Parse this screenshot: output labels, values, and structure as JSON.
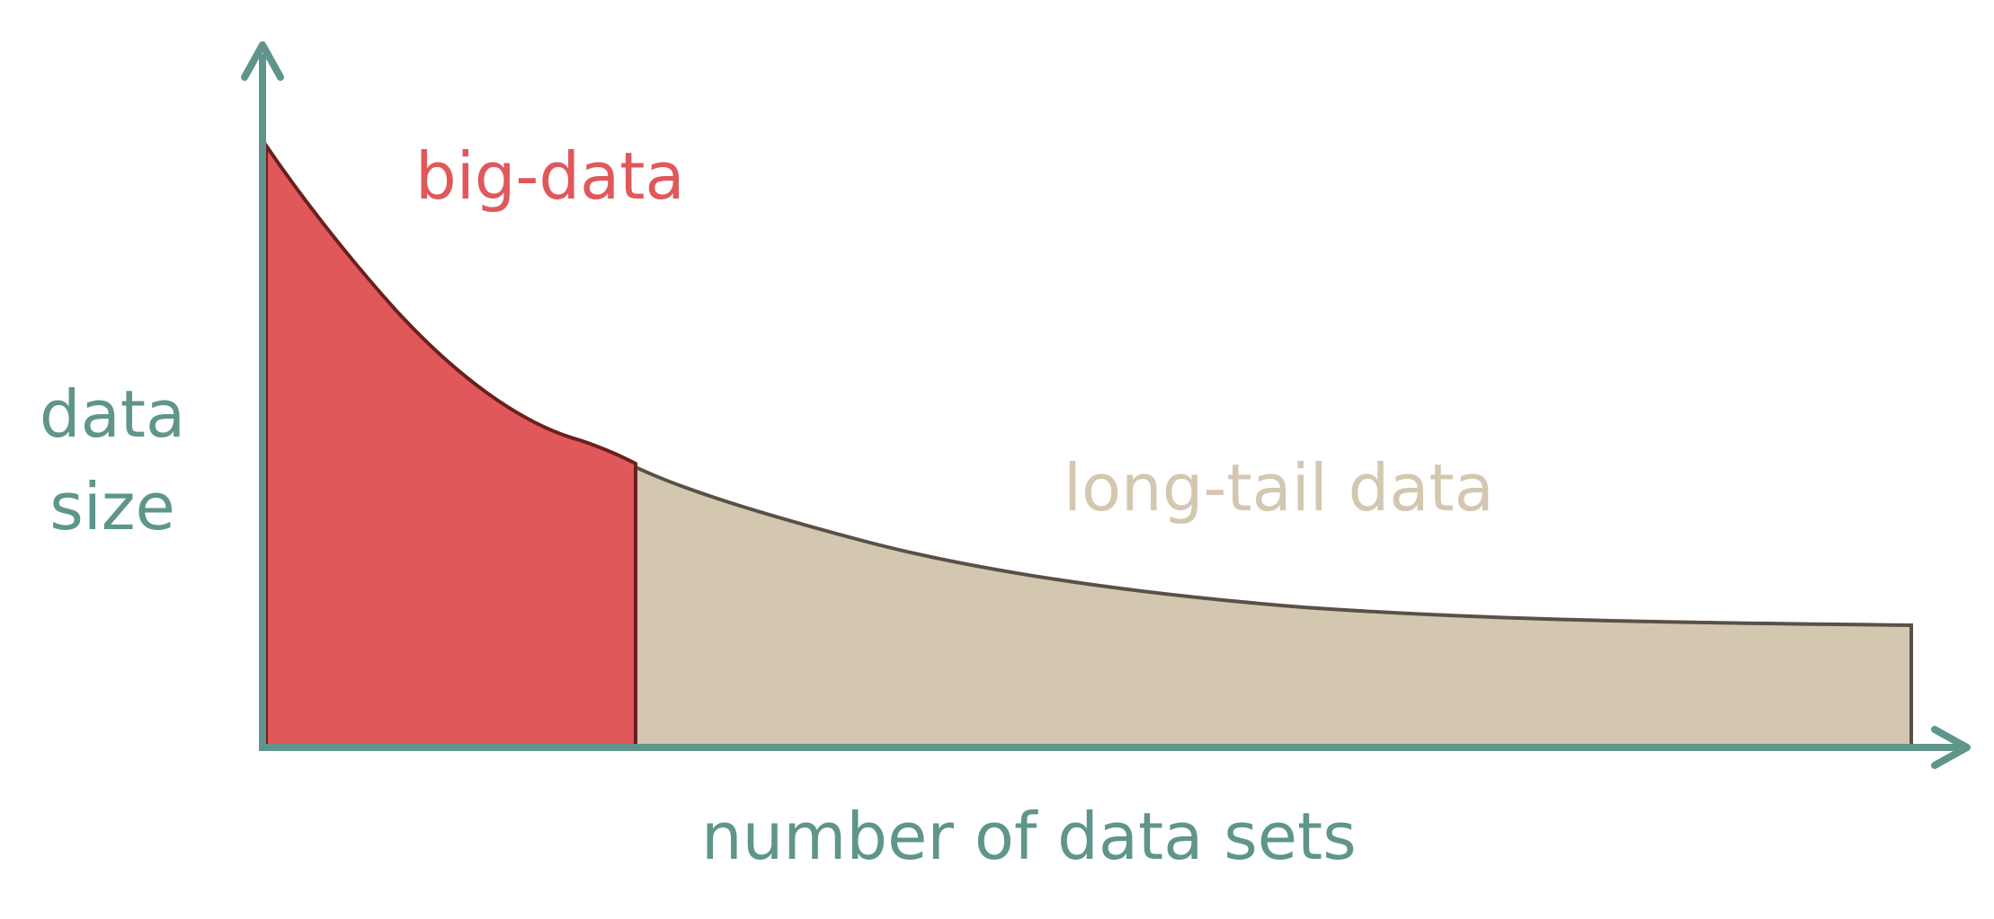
{
  "colors": {
    "axis": "#5f958a",
    "big_data_fill": "#e0585a",
    "big_data_edge": "#6b1f1e",
    "long_tail_fill": "#d4c7b0",
    "long_tail_edge": "#5a5047",
    "big_data_text": "#e0585a",
    "long_tail_text": "#d4c7b0",
    "axis_text": "#5f958a"
  },
  "labels": {
    "big_data": "big-data",
    "long_tail": "long-tail data",
    "y_axis_line1": "data",
    "y_axis_line2": "size",
    "x_axis": "number of data sets"
  }
}
